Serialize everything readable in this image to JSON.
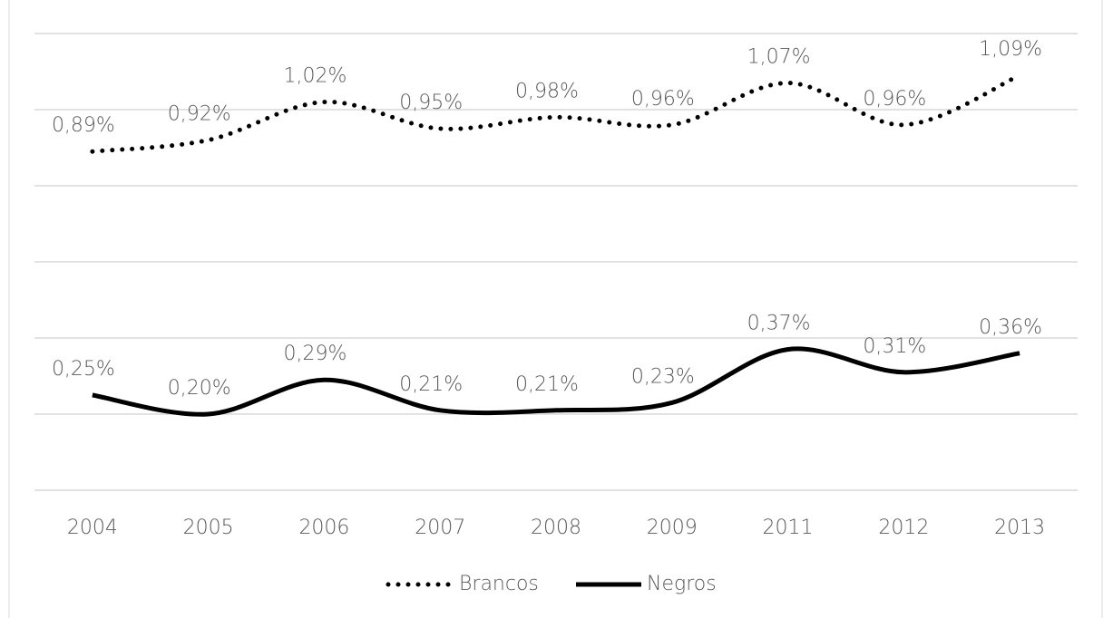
{
  "chart_data": {
    "type": "line",
    "categories": [
      "2004",
      "2005",
      "2006",
      "2007",
      "2008",
      "2009",
      "2011",
      "2012",
      "2013"
    ],
    "series": [
      {
        "name": "Brancos",
        "color": "#000000",
        "style": "dotted",
        "values": [
          0.89,
          0.92,
          1.02,
          0.95,
          0.98,
          0.96,
          1.07,
          0.96,
          1.09
        ],
        "value_labels": [
          "0,89%",
          "0,92%",
          "1,02%",
          "0,95%",
          "0,98%",
          "0,96%",
          "1,07%",
          "0,96%",
          "1,09%"
        ]
      },
      {
        "name": "Negros",
        "color": "#000000",
        "style": "solid",
        "values": [
          0.25,
          0.2,
          0.29,
          0.21,
          0.21,
          0.23,
          0.37,
          0.31,
          0.36
        ],
        "value_labels": [
          "0,25%",
          "0,20%",
          "0,29%",
          "0,21%",
          "0,21%",
          "0,23%",
          "0,37%",
          "0,31%",
          "0,36%"
        ]
      }
    ],
    "ylim": [
      0,
      1.2
    ],
    "yticks": [
      0,
      0.2,
      0.4,
      0.6,
      0.8,
      1,
      1.2
    ],
    "grid": true,
    "legend": "bottom"
  }
}
